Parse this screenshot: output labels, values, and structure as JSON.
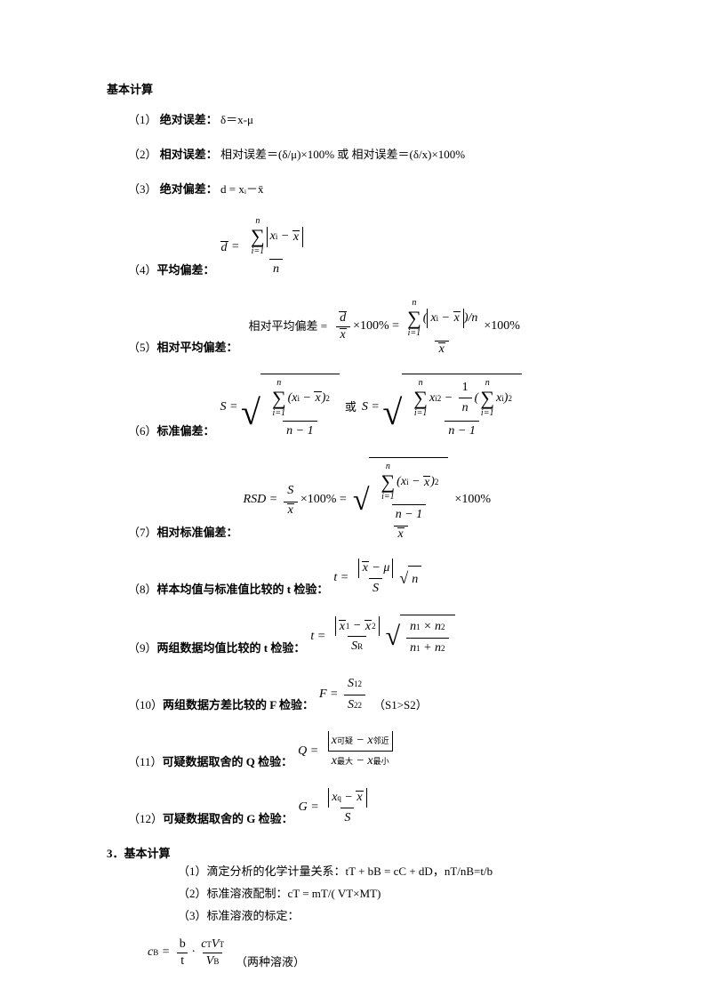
{
  "title": "基本计算",
  "items": [
    {
      "num": "（1）",
      "label": "绝对误差：",
      "rest": "δ＝x-μ"
    },
    {
      "num": "（2）",
      "label": "相对误差：",
      "rest": "相对误差＝(δ/μ)×100%  或  相对误差＝(δ/x)×100%"
    },
    {
      "num": "（3）",
      "label": "绝对偏差：",
      "rest": "d = xᵢ－x̄"
    },
    {
      "num": "（4）",
      "label": "平均偏差："
    },
    {
      "num": "（5）",
      "label": "相对平均偏差："
    },
    {
      "num": "（6）",
      "label": "标准偏差："
    },
    {
      "num": "（7）",
      "label": "相对标准偏差："
    },
    {
      "num": "（8）",
      "label": "样本均值与标准值比较的 t 检验："
    },
    {
      "num": "（9）",
      "label": "两组数据均值比较的 t 检验："
    },
    {
      "num": "（10）",
      "label": "两组数据方差比较的 F 检验："
    },
    {
      "num": "（11）",
      "label": "可疑数据取舍的 Q 检验："
    },
    {
      "num": "（12）",
      "label": "可疑数据取舍的 G 检验："
    }
  ],
  "section3": {
    "heading": "3．基本计算",
    "lines": [
      "（1）滴定分析的化学计量关系：tT + bB = cC + dD，nT/nB=t/b",
      "（2）标准溶液配制：cT = mT/( VT×MT)",
      "（3）标准溶液的标定："
    ],
    "tail_note": "（两种溶液）"
  },
  "notes": {
    "or": "或",
    "s1gts2": "（S1>S2）"
  },
  "style": {
    "background_color": "#ffffff",
    "text_color": "#000000",
    "body_fontsize": 13,
    "formula_fontsize": 14,
    "font_family_body": "SimSun",
    "font_family_math": "Times New Roman"
  }
}
